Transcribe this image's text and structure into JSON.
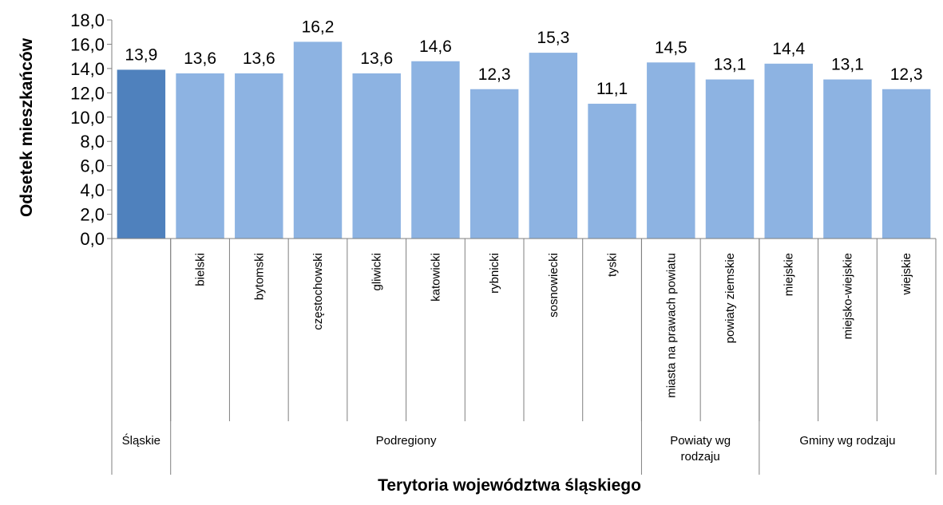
{
  "chart_data": {
    "type": "bar",
    "title": "",
    "xlabel": "Terytoria województwa śląskiego",
    "ylabel": "Odsetek mieszkańców",
    "ylim": [
      0,
      18
    ],
    "yticks": [
      "0,0",
      "2,0",
      "4,0",
      "6,0",
      "8,0",
      "10,0",
      "12,0",
      "14,0",
      "16,0",
      "18,0"
    ],
    "grid": false,
    "categories": [
      "",
      "bielski",
      "bytomski",
      "częstochowski",
      "gliwicki",
      "katowicki",
      "rybnicki",
      "sosnowiecki",
      "tyski",
      "miasta na prawach powiatu",
      "powiaty ziemskie",
      "miejskie",
      "miejsko-wiejskie",
      "wiejskie"
    ],
    "values": [
      13.9,
      13.6,
      13.6,
      16.2,
      13.6,
      14.6,
      12.3,
      15.3,
      11.1,
      14.5,
      13.1,
      14.4,
      13.1,
      12.3
    ],
    "value_labels": [
      "13,9",
      "13,6",
      "13,6",
      "16,2",
      "13,6",
      "14,6",
      "12,3",
      "15,3",
      "11,1",
      "14,5",
      "13,1",
      "14,4",
      "13,1",
      "12,3"
    ],
    "groups": [
      {
        "label": "Śląskie",
        "start": 0,
        "end": 0
      },
      {
        "label": "Podregiony",
        "start": 1,
        "end": 8
      },
      {
        "label": "Powiaty wg rodzaju",
        "start": 9,
        "end": 10
      },
      {
        "label": "Gminy wg rodzaju",
        "start": 11,
        "end": 13
      }
    ],
    "colors": {
      "highlight": "#4f81bd",
      "bar": "#8db3e2",
      "axis": "#7f7f7f"
    },
    "highlight_index": 0
  }
}
